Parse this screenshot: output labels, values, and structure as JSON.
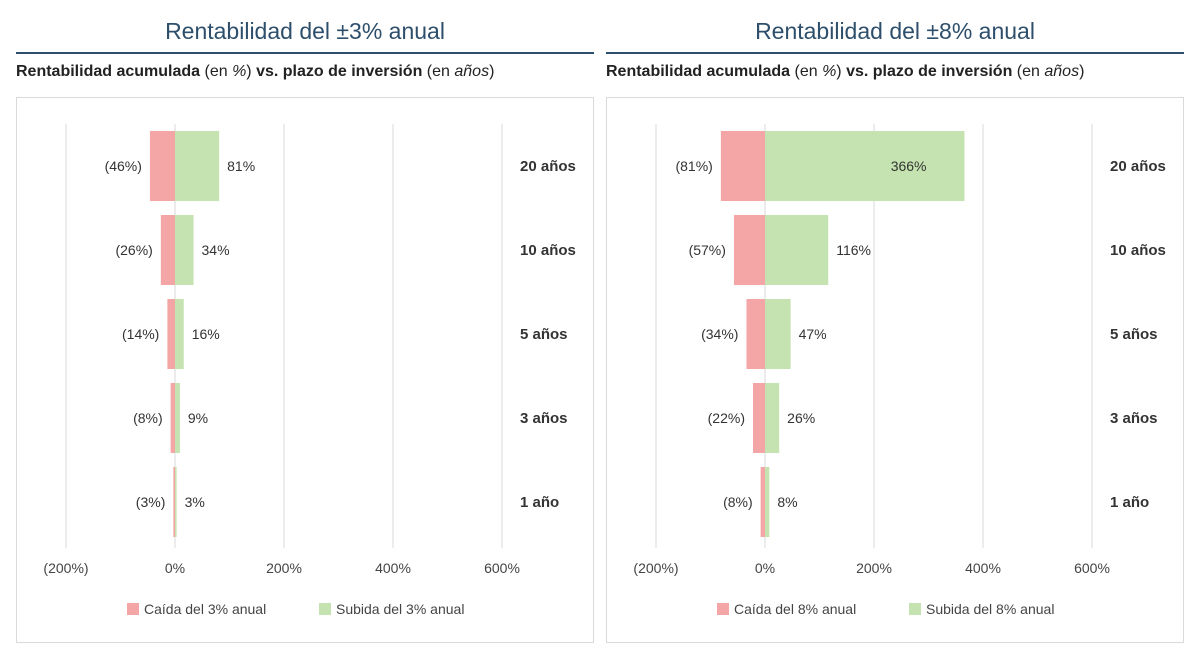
{
  "panels": [
    {
      "title": "Rentabilidad del ±3% anual",
      "subtitle": {
        "part1": "Rentabilidad acumulada",
        "part2": " (en ",
        "part3": "%",
        "part4": ") ",
        "part5": "vs. plazo de inversión",
        "part6": " (en ",
        "part7": "años",
        "part8": ")"
      }
    },
    {
      "title": "Rentabilidad del ±8% anual",
      "subtitle": {
        "part1": "Rentabilidad acumulada",
        "part2": " (en ",
        "part3": "%",
        "part4": ") ",
        "part5": "vs. plazo de inversión",
        "part6": " (en ",
        "part7": "años",
        "part8": ")"
      }
    }
  ],
  "chart_data": [
    {
      "type": "bar",
      "orientation": "horizontal",
      "stacked": "diverging",
      "categories": [
        "20 años",
        "10 años",
        "5 años",
        "3 años",
        "1 año"
      ],
      "series": [
        {
          "name": "Caída del 3% anual",
          "values": [
            -46,
            -26,
            -14,
            -8,
            -3
          ],
          "labels": [
            "(46%)",
            "(26%)",
            "(14%)",
            "(8%)",
            "(3%)"
          ],
          "color": "#f4a6a6"
        },
        {
          "name": "Subida del 3% anual",
          "values": [
            81,
            34,
            16,
            9,
            3
          ],
          "labels": [
            "81%",
            "34%",
            "16%",
            "9%",
            "3%"
          ],
          "color": "#c5e3b0"
        }
      ],
      "xlim": [
        -200,
        600
      ],
      "xticks": [
        -200,
        0,
        200,
        400,
        600
      ],
      "xtick_labels": [
        "(200%)",
        "0%",
        "200%",
        "400%",
        "600%"
      ],
      "grid": "vertical",
      "legend": "bottom"
    },
    {
      "type": "bar",
      "orientation": "horizontal",
      "stacked": "diverging",
      "categories": [
        "20 años",
        "10 años",
        "5 años",
        "3 años",
        "1 año"
      ],
      "series": [
        {
          "name": "Caída del 8% anual",
          "values": [
            -81,
            -57,
            -34,
            -22,
            -8
          ],
          "labels": [
            "(81%)",
            "(57%)",
            "(34%)",
            "(22%)",
            "(8%)"
          ],
          "color": "#f4a6a6"
        },
        {
          "name": "Subida del 8% anual",
          "values": [
            366,
            116,
            47,
            26,
            8
          ],
          "labels": [
            "366%",
            "116%",
            "47%",
            "26%",
            "8%"
          ],
          "color": "#c5e3b0"
        }
      ],
      "xlim": [
        -200,
        600
      ],
      "xticks": [
        -200,
        0,
        200,
        400,
        600
      ],
      "xtick_labels": [
        "(200%)",
        "0%",
        "200%",
        "400%",
        "600%"
      ],
      "grid": "vertical",
      "legend": "bottom"
    }
  ]
}
